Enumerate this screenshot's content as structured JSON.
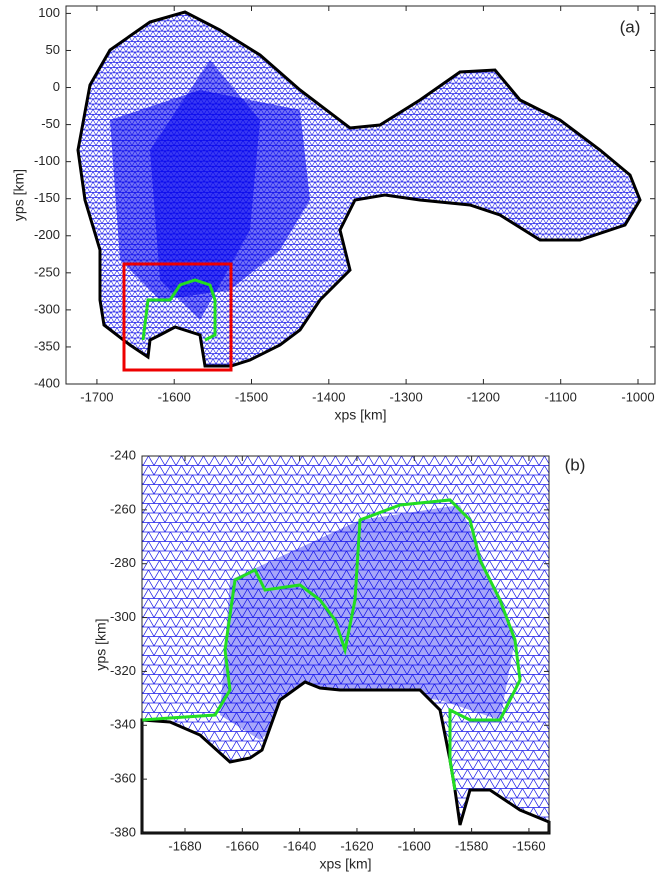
{
  "chart_data": [
    {
      "type": "mesh",
      "panel_label": "(a)",
      "xlabel": "xps [km]",
      "ylabel": "yps [km]",
      "xlim": [
        -1740,
        -978
      ],
      "ylim": [
        -400,
        110
      ],
      "xticks": [
        -1700,
        -1600,
        -1500,
        -1400,
        -1300,
        -1200,
        -1100,
        -1000
      ],
      "yticks": [
        100,
        50,
        0,
        -50,
        -100,
        -150,
        -200,
        -250,
        -300,
        -350,
        -400
      ]
    },
    {
      "type": "mesh",
      "panel_label": "(b)",
      "xlabel": "xps [km]",
      "ylabel": "yps [km]",
      "xlim": [
        -1695,
        -1553
      ],
      "ylim": [
        -380,
        -240
      ],
      "xticks": [
        -1680,
        -1660,
        -1640,
        -1620,
        -1600,
        -1580,
        -1560
      ],
      "yticks": [
        -240,
        -260,
        -280,
        -300,
        -320,
        -340,
        -360,
        -380
      ]
    }
  ]
}
